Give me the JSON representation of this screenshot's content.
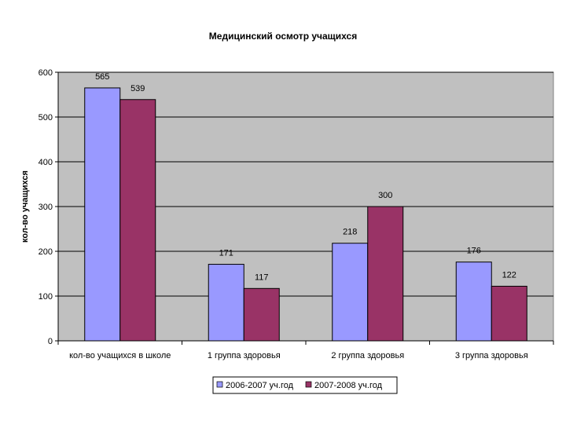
{
  "chart_data": {
    "type": "bar",
    "title": "Медицинский осмотр учащихся",
    "xlabel": "",
    "ylabel": "кол-во учащихся",
    "categories": [
      "кол-во учащихся в школе",
      "1 группа здоровья",
      "2 группа здоровья",
      "3 группа здоровья"
    ],
    "series": [
      {
        "name": "2006-2007 уч.год",
        "values": [
          565,
          171,
          218,
          176
        ],
        "color": "#9999ff"
      },
      {
        "name": "2007-2008 уч.год",
        "values": [
          539,
          117,
          300,
          122
        ],
        "color": "#993366"
      }
    ],
    "ylim": [
      0,
      600
    ],
    "yticks": [
      0,
      100,
      200,
      300,
      400,
      500,
      600
    ],
    "grid": true,
    "plot_background": "#c0c0c0",
    "legend_position": "bottom"
  }
}
